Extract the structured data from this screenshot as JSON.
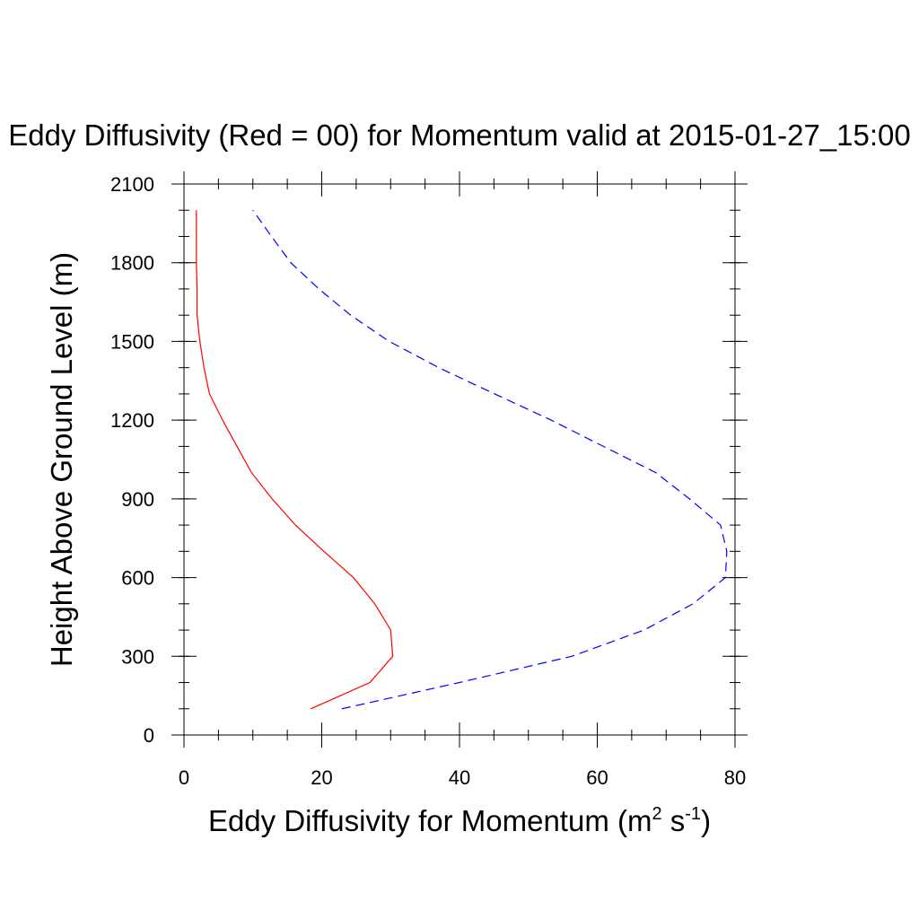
{
  "chart_data": {
    "type": "line",
    "title": "Eddy Diffusivity (Red = 00) for Momentum valid at 2015-01-27_15:00",
    "xlabel": {
      "main": "Eddy Diffusivity for Momentum (m",
      "sup1": "2",
      "mid": " s",
      "sup2": "-1",
      "end": ")"
    },
    "ylabel": "Height Above Ground Level (m)",
    "xlim": [
      0,
      80
    ],
    "ylim": [
      0,
      2100
    ],
    "xticks": [
      {
        "value": 0,
        "label": "0"
      },
      {
        "value": 20,
        "label": "20"
      },
      {
        "value": 40,
        "label": "40"
      },
      {
        "value": 60,
        "label": "60"
      },
      {
        "value": 80,
        "label": "80"
      }
    ],
    "yticks": [
      {
        "value": 0,
        "label": "0"
      },
      {
        "value": 300,
        "label": "300"
      },
      {
        "value": 600,
        "label": "600"
      },
      {
        "value": 900,
        "label": "900"
      },
      {
        "value": 1200,
        "label": "1200"
      },
      {
        "value": 1500,
        "label": "1500"
      },
      {
        "value": 1800,
        "label": "1800"
      },
      {
        "value": 2100,
        "label": "2100"
      }
    ],
    "x_minor_step": 5,
    "y_minor_step": 100,
    "grid": false,
    "series": [
      {
        "color": "#ff0000",
        "dash": "solid",
        "points": [
          [
            18.4,
            100
          ],
          [
            27.0,
            200
          ],
          [
            30.3,
            300
          ],
          [
            30.0,
            400
          ],
          [
            27.7,
            500
          ],
          [
            24.6,
            600
          ],
          [
            20.3,
            700
          ],
          [
            16.2,
            800
          ],
          [
            12.8,
            900
          ],
          [
            9.8,
            1000
          ],
          [
            7.7,
            1100
          ],
          [
            5.6,
            1200
          ],
          [
            3.7,
            1300
          ],
          [
            2.9,
            1400
          ],
          [
            2.3,
            1500
          ],
          [
            1.9,
            1600
          ],
          [
            1.9,
            1700
          ],
          [
            1.8,
            1800
          ],
          [
            1.8,
            1900
          ],
          [
            1.8,
            2000
          ]
        ]
      },
      {
        "color": "#0000ff",
        "dash": "dashed",
        "points": [
          [
            22.9,
            100
          ],
          [
            40.0,
            200
          ],
          [
            56.3,
            300
          ],
          [
            66.8,
            400
          ],
          [
            73.9,
            500
          ],
          [
            78.6,
            600
          ],
          [
            78.8,
            700
          ],
          [
            77.9,
            800
          ],
          [
            73.4,
            900
          ],
          [
            68.5,
            1000
          ],
          [
            60.9,
            1100
          ],
          [
            53.3,
            1200
          ],
          [
            45.1,
            1300
          ],
          [
            37.0,
            1400
          ],
          [
            29.8,
            1500
          ],
          [
            24.2,
            1600
          ],
          [
            19.6,
            1700
          ],
          [
            15.5,
            1800
          ],
          [
            12.7,
            1900
          ],
          [
            10.0,
            2000
          ]
        ]
      }
    ]
  }
}
